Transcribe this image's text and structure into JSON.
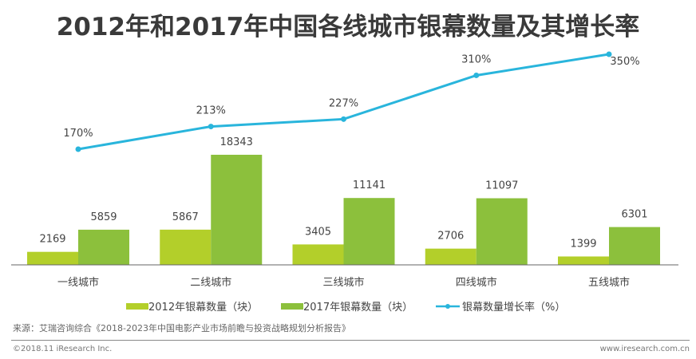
{
  "chart_data": {
    "type": "bar",
    "title": "2012年和2017年中国各线城市银幕数量及其增长率",
    "categories": [
      "一线城市",
      "二线城市",
      "三线城市",
      "四线城市",
      "五线城市"
    ],
    "series": [
      {
        "name": "2012年银幕数量（块）",
        "type": "bar",
        "color": "#b3cf2a",
        "values": [
          2169,
          5867,
          3405,
          2706,
          1399
        ]
      },
      {
        "name": "2017年银幕数量（块）",
        "type": "bar",
        "color": "#8cc03c",
        "values": [
          5859,
          18343,
          11141,
          11097,
          6301
        ]
      },
      {
        "name": "银幕数量增长率（%）",
        "type": "line",
        "color": "#29b5dc",
        "values": [
          170,
          213,
          227,
          310,
          350
        ],
        "labels": [
          "170%",
          "213%",
          "227%",
          "310%",
          "350%"
        ]
      }
    ],
    "legend": "bottom",
    "grid": false
  },
  "source": "来源：艾瑞咨询综合《2018-2023年中国电影产业市场前瞻与投资战略规划分析报告》",
  "copyright": "©2018.11 iResearch Inc.",
  "website": "www.iresearch.com.cn"
}
